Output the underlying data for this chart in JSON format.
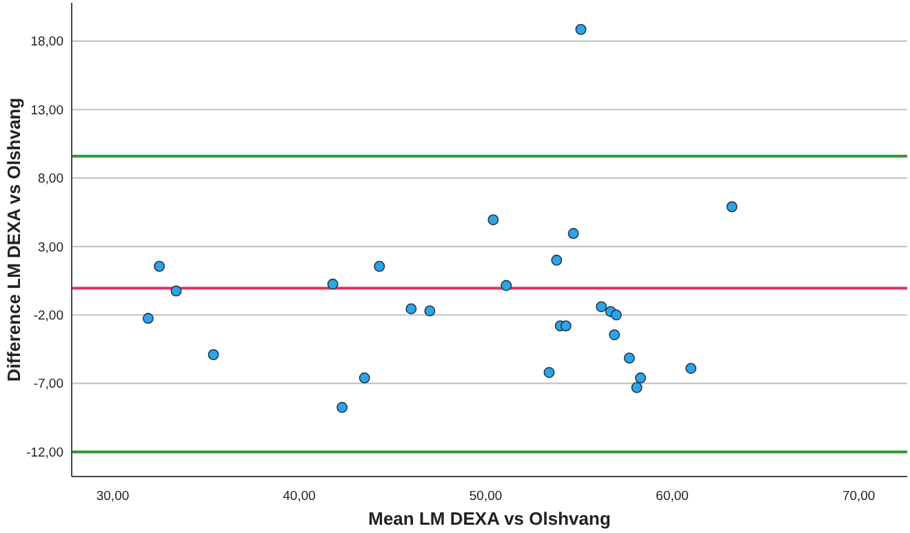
{
  "chart_data": {
    "type": "scatter",
    "xlabel": "Mean LM DEXA vs Olshvang",
    "ylabel": "Difference LM DEXA vs Olshvang",
    "x": [
      31.9,
      32.5,
      33.4,
      35.4,
      41.8,
      42.3,
      43.5,
      44.3,
      46.0,
      47.0,
      50.4,
      51.1,
      55.1,
      54.7,
      53.8,
      53.4,
      54.0,
      54.3,
      56.2,
      56.7,
      57.0,
      56.9,
      57.7,
      58.3,
      58.1,
      61.0,
      63.2
    ],
    "series": [
      {
        "color": "#2ea3e6",
        "values": [
          -2.25,
          1.55,
          -0.25,
          -4.9,
          0.25,
          -8.75,
          -6.6,
          1.55,
          -1.55,
          -1.7,
          4.95,
          0.15,
          18.85,
          3.95,
          2.0,
          -6.2,
          -2.8,
          -2.8,
          -1.4,
          -1.75,
          -2.0,
          -3.45,
          -5.15,
          -6.6,
          -7.3,
          -5.9,
          5.9
        ]
      }
    ],
    "marker": "circle",
    "grid": "y",
    "xlim": [
      27.8,
      72.6
    ],
    "ylim": [
      -13.8,
      20.8
    ],
    "xticks": [
      {
        "value": 30,
        "label": "30,00"
      },
      {
        "value": 40,
        "label": "40,00"
      },
      {
        "value": 50,
        "label": "50,00"
      },
      {
        "value": 60,
        "label": "60,00"
      },
      {
        "value": 70,
        "label": "70,00"
      }
    ],
    "yticks": [
      {
        "value": -12,
        "label": "-12,00"
      },
      {
        "value": -7,
        "label": "-7,00"
      },
      {
        "value": -2,
        "label": "-2,00"
      },
      {
        "value": 3,
        "label": "3,00"
      },
      {
        "value": 8,
        "label": "8,00"
      },
      {
        "value": 13,
        "label": "13,00"
      },
      {
        "value": 18,
        "label": "18,00"
      }
    ],
    "ref_lines": [
      {
        "axis": "y",
        "value": 9.6,
        "color": "#2e9a2e"
      },
      {
        "axis": "y",
        "value": -0.05,
        "color": "#e0305a"
      },
      {
        "axis": "y",
        "value": -12.0,
        "color": "#2e9a2e"
      }
    ]
  }
}
